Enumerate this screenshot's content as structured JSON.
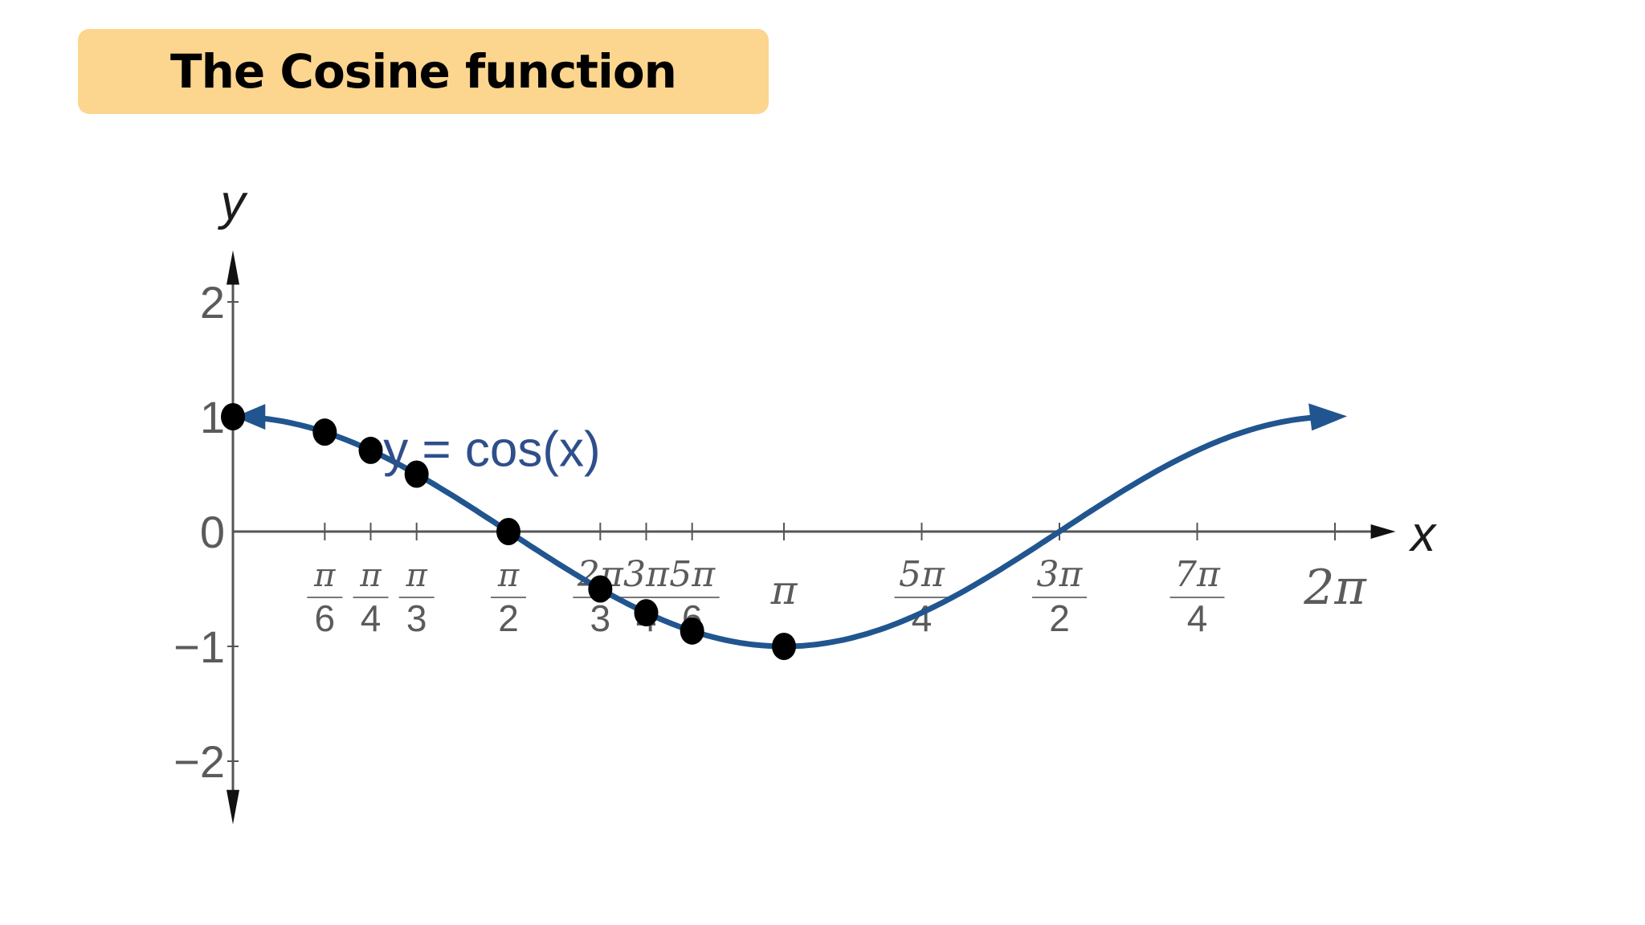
{
  "slide": {
    "title": "The Cosine function"
  },
  "chart_data": {
    "type": "line",
    "function": "cos",
    "series": [
      {
        "name": "y = cos(x)",
        "color": "#21558f",
        "x_range_multiples_of_pi": [
          0,
          2
        ]
      }
    ],
    "xlabel": "x",
    "ylabel": "y",
    "xlim_multiples_of_pi": [
      0,
      2
    ],
    "ylim": [
      -2,
      2
    ],
    "y_ticks": [
      {
        "value": 2,
        "label": "2"
      },
      {
        "value": 1,
        "label": "1"
      },
      {
        "value": 0,
        "label": "0"
      },
      {
        "value": -1,
        "label": "−1"
      },
      {
        "value": -2,
        "label": "−2"
      }
    ],
    "x_ticks": [
      {
        "value": 0.16667,
        "num": "π",
        "den": "6"
      },
      {
        "value": 0.25,
        "num": "π",
        "den": "4"
      },
      {
        "value": 0.33333,
        "num": "π",
        "den": "3"
      },
      {
        "value": 0.5,
        "num": "π",
        "den": "2"
      },
      {
        "value": 0.66667,
        "num": "2π",
        "den": "3"
      },
      {
        "value": 0.75,
        "num": "3π",
        "den": "4"
      },
      {
        "value": 0.83333,
        "num": "5π",
        "den": "6"
      },
      {
        "value": 1,
        "num": "π",
        "den": ""
      },
      {
        "value": 1.25,
        "num": "5π",
        "den": "4"
      },
      {
        "value": 1.5,
        "num": "3π",
        "den": "2"
      },
      {
        "value": 1.75,
        "num": "7π",
        "den": "4"
      },
      {
        "value": 2,
        "num": "2π",
        "den": ""
      }
    ],
    "points": [
      {
        "x_pi": 0,
        "y": 1
      },
      {
        "x_pi": 0.16667,
        "y": 0.866
      },
      {
        "x_pi": 0.25,
        "y": 0.707
      },
      {
        "x_pi": 0.33333,
        "y": 0.5
      },
      {
        "x_pi": 0.5,
        "y": 0
      },
      {
        "x_pi": 0.66667,
        "y": -0.5
      },
      {
        "x_pi": 0.75,
        "y": -0.707
      },
      {
        "x_pi": 0.83333,
        "y": -0.866
      },
      {
        "x_pi": 1,
        "y": -1
      }
    ],
    "curve_label": "y = cos(x)",
    "grid": false,
    "colors": {
      "curve": "#21558f",
      "points": "#000000",
      "axes": "#555555"
    }
  }
}
